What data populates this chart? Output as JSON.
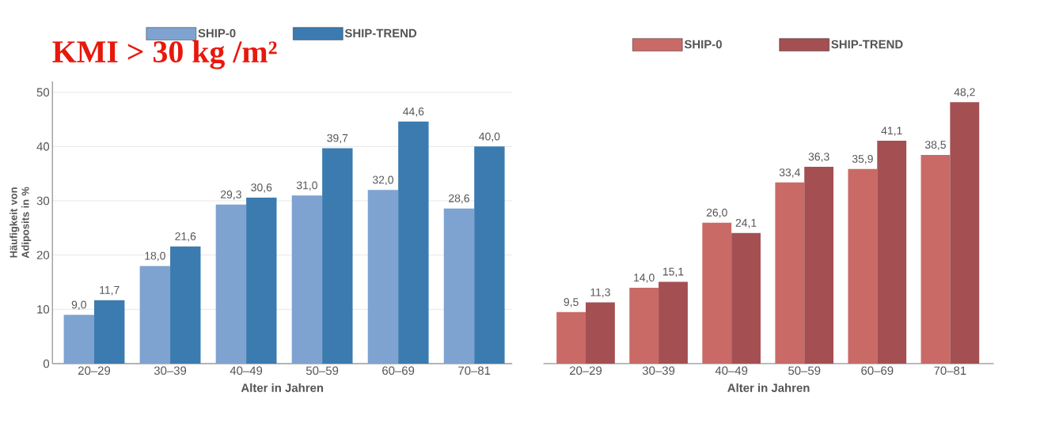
{
  "chart_data": [
    {
      "type": "bar",
      "title": "KMI > 30 kg /m²",
      "xlabel": "Alter in Jahren",
      "ylabel": "Häufigkeit von Adiposits in %",
      "categories": [
        "20–29",
        "30–39",
        "40–49",
        "50–59",
        "60–69",
        "70–81"
      ],
      "series": [
        {
          "name": "SHIP-0",
          "color": "#7ea3d0",
          "values": [
            9.0,
            18.0,
            29.3,
            31.0,
            32.0,
            28.6
          ],
          "value_labels": [
            "9,0",
            "18,0",
            "29,3",
            "31,0",
            "32,0",
            "28,6"
          ]
        },
        {
          "name": "SHIP-TREND",
          "color": "#3b7bb0",
          "values": [
            11.7,
            21.6,
            30.6,
            39.7,
            44.6,
            40.0
          ],
          "value_labels": [
            "11,7",
            "21,6",
            "30,6",
            "39,7",
            "44,6",
            "40,0"
          ]
        }
      ],
      "ylim": [
        0,
        52
      ],
      "yticks": [
        0,
        10,
        20,
        30,
        40,
        50
      ],
      "grid": "y",
      "legend": "top"
    },
    {
      "type": "bar",
      "xlabel": "Alter in Jahren",
      "categories": [
        "20–29",
        "30–39",
        "40–49",
        "50–59",
        "60–69",
        "70–81"
      ],
      "series": [
        {
          "name": "SHIP-0",
          "color": "#c96a66",
          "values": [
            9.5,
            14.0,
            26.0,
            33.4,
            35.9,
            38.5
          ],
          "value_labels": [
            "9,5",
            "14,0",
            "26,0",
            "33,4",
            "35,9",
            "38,5"
          ]
        },
        {
          "name": "SHIP-TREND",
          "color": "#a44f52",
          "values": [
            11.3,
            15.1,
            24.1,
            36.3,
            41.1,
            48.2
          ],
          "value_labels": [
            "11,3",
            "15,1",
            "24,1",
            "36,3",
            "41,1",
            "48,2"
          ]
        }
      ],
      "ylim": [
        0,
        50
      ],
      "yticks": [
        0,
        10,
        20,
        30,
        40,
        50
      ],
      "grid": "y",
      "legend": "top",
      "tick_labels": "x"
    }
  ]
}
